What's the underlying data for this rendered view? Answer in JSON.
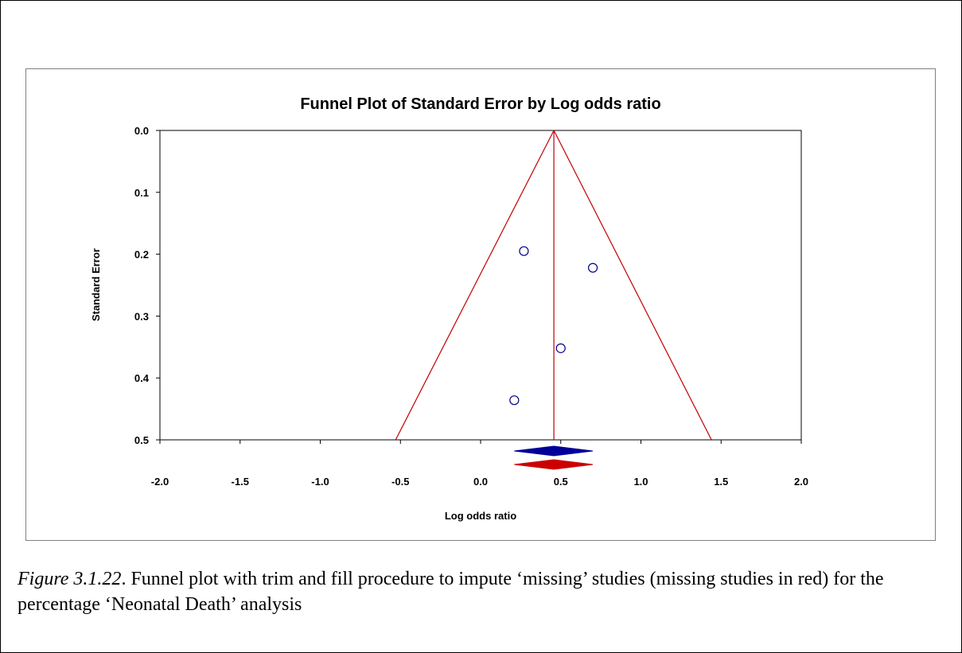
{
  "chart_data": {
    "type": "scatter",
    "title": "Funnel Plot of Standard Error by Log odds ratio",
    "xlabel": "Log odds ratio",
    "ylabel": "Standard Error",
    "xlim": [
      -2.0,
      2.0
    ],
    "ylim": [
      0.0,
      0.5
    ],
    "y_reversed": true,
    "x_ticks": [
      "-2.0",
      "-1.5",
      "-1.0",
      "-0.5",
      "0.0",
      "0.5",
      "1.0",
      "1.5",
      "2.0"
    ],
    "y_ticks": [
      "0.0",
      "0.1",
      "0.2",
      "0.3",
      "0.4",
      "0.5"
    ],
    "grid": false,
    "series": [
      {
        "marker": "open-circle",
        "color": "#00008B",
        "points": [
          {
            "x": 0.27,
            "y": 0.195
          },
          {
            "x": 0.7,
            "y": 0.222
          },
          {
            "x": 0.5,
            "y": 0.352
          },
          {
            "x": 0.21,
            "y": 0.436
          }
        ]
      }
    ],
    "funnel": {
      "center": 0.457,
      "color": "#C00000",
      "lower_left_at_y_max": -0.53,
      "lower_right_at_y_max": 1.44
    },
    "summary_diamonds": [
      {
        "color": "#000099",
        "x_low": 0.21,
        "x_center": 0.457,
        "x_high": 0.7
      },
      {
        "color": "#CC0000",
        "x_low": 0.21,
        "x_center": 0.457,
        "x_high": 0.7
      }
    ]
  },
  "caption": {
    "figure_number": "Figure 3.1.22",
    "text": ". Funnel plot with trim and fill procedure to impute ‘missing’ studies (missing studies in red) for the percentage ‘Neonatal Death’ analysis"
  }
}
